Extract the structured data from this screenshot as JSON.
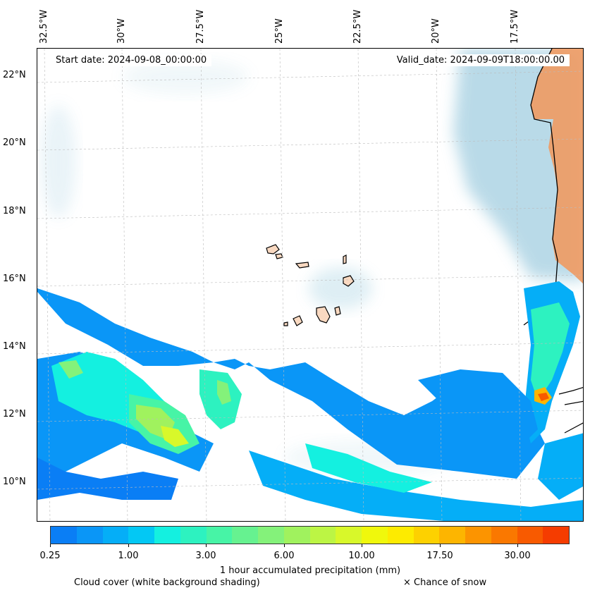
{
  "map": {
    "start_date": "Start date: 2024-09-08_00:00:00",
    "valid_date": "Valid_date: 2024-09-09T18:00:00.00",
    "lon_labels": [
      "32.5°W",
      "30°W",
      "27.5°W",
      "25°W",
      "22.5°W",
      "20°W",
      "17.5°W"
    ],
    "lat_labels": [
      "22°N",
      "20°N",
      "18°N",
      "16°N",
      "14°N",
      "12°N",
      "10°N"
    ],
    "extent": {
      "lon_min": -32.8,
      "lon_max": -15.6,
      "lat_min": 8.9,
      "lat_max": 22.8
    },
    "colors": {
      "cloud": "#a9d2e3",
      "land_arid": "#f09a62",
      "land_islands": "#f9d9c1",
      "coastline": "#000000"
    }
  },
  "colorbar": {
    "label": "1 hour accumulated precipitation (mm)",
    "tick_labels": [
      "0.25",
      "1.00",
      "3.00",
      "6.00",
      "10.00",
      "17.50",
      "30.00"
    ],
    "colors": [
      "#0a7ef5",
      "#0a96f7",
      "#05aef7",
      "#03c8f4",
      "#14f0e0",
      "#2df2c0",
      "#47f4a6",
      "#66f290",
      "#84f27a",
      "#a0f25e",
      "#bcf544",
      "#d8f82a",
      "#f0f80c",
      "#fdeb00",
      "#fdd100",
      "#fdb500",
      "#fc9400",
      "#fa7800",
      "#f85a00",
      "#f53c00"
    ]
  },
  "legend": {
    "cloud_note": "Cloud cover (white background shading)",
    "snow_note": "× Chance of snow"
  }
}
